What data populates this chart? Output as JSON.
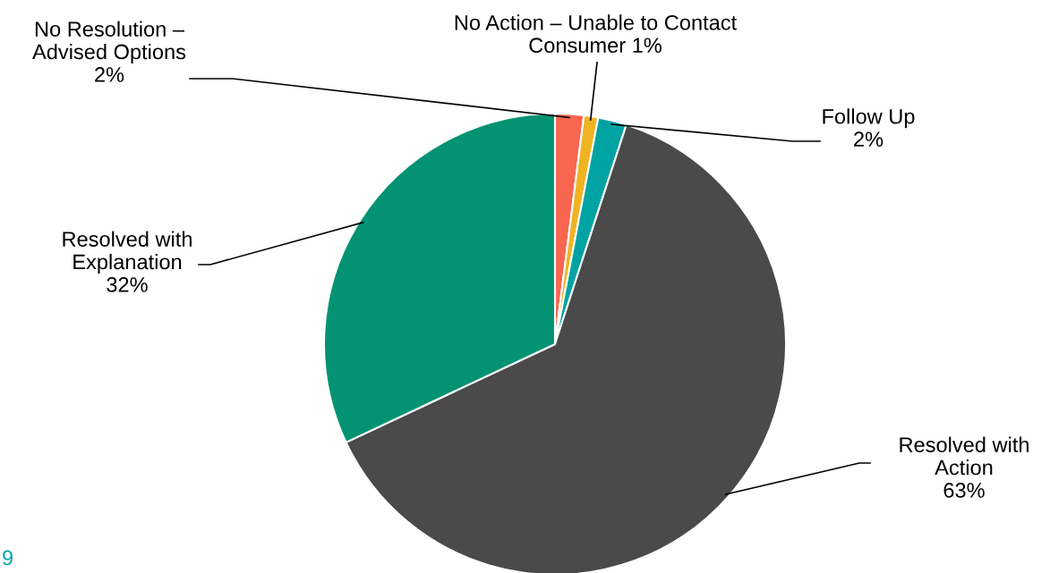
{
  "chart_data": {
    "type": "pie",
    "categories": [
      "No Resolution –\nAdvised Options",
      "No Action – Unable to Contact\nConsumer",
      "Follow Up",
      "Resolved with\nAction",
      "Resolved with\nExplanation"
    ],
    "values": [
      2,
      1,
      2,
      63,
      32
    ],
    "value_labels": [
      "2%",
      "1%",
      "2%",
      "63%",
      "32%"
    ],
    "colors": [
      "#f96650",
      "#f0b323",
      "#00a3a1",
      "#4a4a4a",
      "#039372"
    ],
    "annotations": [
      "9"
    ],
    "legend": false
  }
}
